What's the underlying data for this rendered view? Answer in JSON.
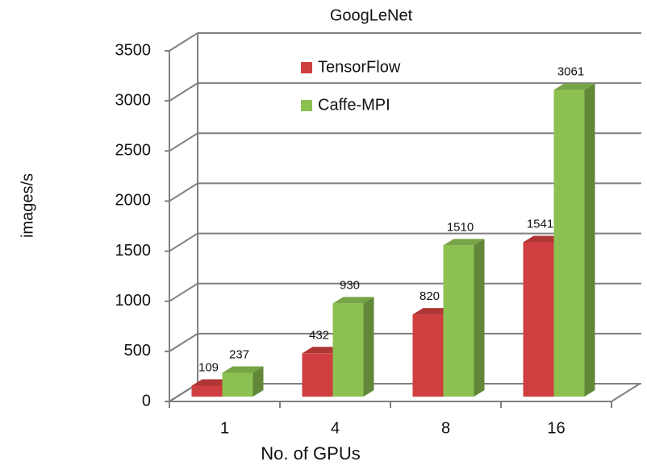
{
  "chart_data": {
    "type": "bar3d",
    "title": "GoogLeNet",
    "x_label": "No. of GPUs",
    "y_label": "images/s",
    "categories": [
      "1",
      "4",
      "8",
      "16"
    ],
    "series": [
      {
        "name": "TensorFlow",
        "color": "#cf3f40",
        "values": [
          109,
          432,
          820,
          1541
        ]
      },
      {
        "name": "Caffe-MPI",
        "color": "#8cc152",
        "values": [
          237,
          930,
          1510,
          3061
        ]
      }
    ],
    "ylim": [
      0,
      3500
    ],
    "yticks": [
      0,
      500,
      1000,
      1500,
      2000,
      2500,
      3000,
      3500
    ],
    "grid": true
  }
}
